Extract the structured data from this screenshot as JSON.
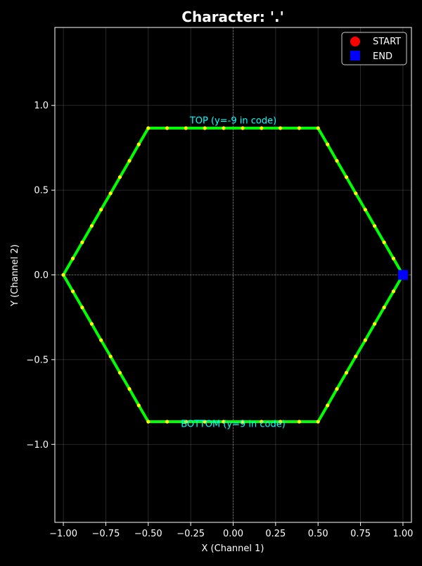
{
  "chart_data": {
    "type": "line",
    "title": "Character: '.'",
    "xlabel": "X (Channel 1)",
    "ylabel": "Y (Channel 2)",
    "xlim": [
      -1.05,
      1.05
    ],
    "ylim": [
      -1.46,
      1.46
    ],
    "x_ticks": [
      -1.0,
      -0.75,
      -0.5,
      -0.25,
      0.0,
      0.25,
      0.5,
      0.75,
      1.0
    ],
    "x_tick_labels": [
      "−1.00",
      "−0.75",
      "−0.50",
      "−0.25",
      "0.00",
      "0.25",
      "0.50",
      "0.75",
      "1.00"
    ],
    "y_ticks": [
      -1.0,
      -0.5,
      0.0,
      0.5,
      1.0
    ],
    "y_tick_labels": [
      "−1.0",
      "−0.5",
      "0.0",
      "0.5",
      "1.0"
    ],
    "grid": true,
    "legend_placement": "top-right",
    "background_color": "#000000",
    "line_color": "#00ff00",
    "point_color": "#ffff00",
    "start_marker_color": "#ff0000",
    "end_marker_color": "#0000ff",
    "annotation_color": "#00ffff",
    "legend": [
      {
        "label": "START",
        "marker": "circle",
        "color": "#ff0000"
      },
      {
        "label": "END",
        "marker": "square",
        "color": "#0000ff"
      }
    ],
    "annotations": [
      {
        "text": "TOP (y=-9 in code)",
        "x": 0.0,
        "y": 0.91
      },
      {
        "text": "BOTTOM (y=9 in code)",
        "x": 0.0,
        "y": -0.88
      }
    ],
    "start_point": {
      "x": 1.0,
      "y": 0.0
    },
    "end_point": {
      "x": 1.0,
      "y": 0.0
    },
    "series": [
      {
        "values": [
          [
            1.0,
            0.0
          ],
          [
            0.944,
            0.097
          ],
          [
            0.889,
            0.192
          ],
          [
            0.833,
            0.289
          ],
          [
            0.778,
            0.385
          ],
          [
            0.722,
            0.481
          ],
          [
            0.667,
            0.577
          ],
          [
            0.611,
            0.673
          ],
          [
            0.556,
            0.77
          ],
          [
            0.5,
            0.866
          ],
          [
            0.389,
            0.866
          ],
          [
            0.278,
            0.866
          ],
          [
            0.167,
            0.866
          ],
          [
            0.056,
            0.866
          ],
          [
            -0.056,
            0.866
          ],
          [
            -0.167,
            0.866
          ],
          [
            -0.278,
            0.866
          ],
          [
            -0.389,
            0.866
          ],
          [
            -0.5,
            0.866
          ],
          [
            -0.556,
            0.77
          ],
          [
            -0.611,
            0.673
          ],
          [
            -0.667,
            0.577
          ],
          [
            -0.722,
            0.481
          ],
          [
            -0.778,
            0.385
          ],
          [
            -0.833,
            0.289
          ],
          [
            -0.889,
            0.192
          ],
          [
            -0.944,
            0.097
          ],
          [
            -1.0,
            0.0
          ],
          [
            -0.944,
            -0.097
          ],
          [
            -0.889,
            -0.192
          ],
          [
            -0.833,
            -0.289
          ],
          [
            -0.778,
            -0.385
          ],
          [
            -0.722,
            -0.481
          ],
          [
            -0.667,
            -0.577
          ],
          [
            -0.611,
            -0.673
          ],
          [
            -0.556,
            -0.77
          ],
          [
            -0.5,
            -0.866
          ],
          [
            -0.389,
            -0.866
          ],
          [
            -0.278,
            -0.866
          ],
          [
            -0.167,
            -0.866
          ],
          [
            -0.056,
            -0.866
          ],
          [
            0.056,
            -0.866
          ],
          [
            0.167,
            -0.866
          ],
          [
            0.278,
            -0.866
          ],
          [
            0.389,
            -0.866
          ],
          [
            0.5,
            -0.866
          ],
          [
            0.556,
            -0.77
          ],
          [
            0.611,
            -0.673
          ],
          [
            0.667,
            -0.577
          ],
          [
            0.722,
            -0.481
          ],
          [
            0.778,
            -0.385
          ],
          [
            0.833,
            -0.289
          ],
          [
            0.889,
            -0.192
          ],
          [
            0.944,
            -0.097
          ],
          [
            1.0,
            0.0
          ]
        ]
      }
    ]
  }
}
